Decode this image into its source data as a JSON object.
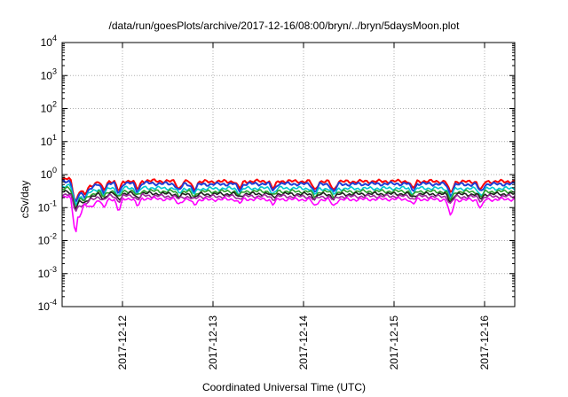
{
  "chart_data": {
    "type": "line",
    "title": "/data/run/goesPlots/archive/2017-12-16/08:00/bryn/../bryn/5daysMoon.plot",
    "xlabel": "Coordinated Universal Time (UTC)",
    "ylabel": "cSv/day",
    "y_scale": "log",
    "ylim": [
      0.0001,
      10000
    ],
    "y_ticks": [
      {
        "value": 0.0001,
        "exp": "-4"
      },
      {
        "value": 0.001,
        "exp": "-3"
      },
      {
        "value": 0.01,
        "exp": "-2"
      },
      {
        "value": 0.1,
        "exp": "-1"
      },
      {
        "value": 1,
        "exp": "0"
      },
      {
        "value": 10,
        "exp": "1"
      },
      {
        "value": 100,
        "exp": "2"
      },
      {
        "value": 1000,
        "exp": "3"
      },
      {
        "value": 10000,
        "exp": "4"
      }
    ],
    "y_tick_base": "10",
    "xlim": [
      "2017-12-11 08:00",
      "2017-12-16 08:00"
    ],
    "x_ticks": [
      "2017-12-12",
      "2017-12-13",
      "2017-12-14",
      "2017-12-15",
      "2017-12-16"
    ],
    "grid": true,
    "colors": {
      "red": "#ff0000",
      "blue": "#1f3fd6",
      "cyan": "#00c8d2",
      "green": "#2ca02c",
      "black": "#202020",
      "purple": "#9a2a9a",
      "magenta": "#ff00ff"
    },
    "series": [
      {
        "color": "red",
        "x": [
          "2017-12-11 08:00",
          "2017-12-11 10:00",
          "2017-12-11 12:00",
          "2017-12-11 18:00",
          "2017-12-12 06:00",
          "2017-12-12 18:00",
          "2017-12-13 06:00",
          "2017-12-13 18:00",
          "2017-12-14 06:00",
          "2017-12-14 18:00",
          "2017-12-15 06:00",
          "2017-12-15 18:00",
          "2017-12-16 08:00"
        ],
        "values": [
          0.7,
          0.75,
          0.3,
          0.62,
          0.65,
          0.6,
          0.62,
          0.63,
          0.6,
          0.62,
          0.63,
          0.6,
          0.62
        ]
      },
      {
        "color": "blue",
        "x": [
          "2017-12-11 08:00",
          "2017-12-11 10:00",
          "2017-12-11 12:00",
          "2017-12-11 18:00",
          "2017-12-12 06:00",
          "2017-12-12 18:00",
          "2017-12-13 06:00",
          "2017-12-13 18:00",
          "2017-12-14 06:00",
          "2017-12-14 18:00",
          "2017-12-15 06:00",
          "2017-12-15 18:00",
          "2017-12-16 08:00"
        ],
        "values": [
          0.6,
          0.65,
          0.25,
          0.52,
          0.55,
          0.5,
          0.52,
          0.53,
          0.5,
          0.52,
          0.53,
          0.5,
          0.52
        ]
      },
      {
        "color": "cyan",
        "x": [
          "2017-12-11 08:00",
          "2017-12-11 10:00",
          "2017-12-11 12:00",
          "2017-12-11 18:00",
          "2017-12-12 06:00",
          "2017-12-12 18:00",
          "2017-12-13 06:00",
          "2017-12-13 18:00",
          "2017-12-14 06:00",
          "2017-12-14 18:00",
          "2017-12-15 06:00",
          "2017-12-15 18:00",
          "2017-12-16 08:00"
        ],
        "values": [
          0.45,
          0.48,
          0.2,
          0.38,
          0.4,
          0.37,
          0.38,
          0.39,
          0.37,
          0.38,
          0.39,
          0.37,
          0.38
        ]
      },
      {
        "color": "green",
        "x": [
          "2017-12-11 08:00",
          "2017-12-11 10:00",
          "2017-12-11 12:00",
          "2017-12-11 18:00",
          "2017-12-12 06:00",
          "2017-12-12 18:00",
          "2017-12-13 06:00",
          "2017-12-13 18:00",
          "2017-12-14 06:00",
          "2017-12-14 18:00",
          "2017-12-15 06:00",
          "2017-12-15 18:00",
          "2017-12-16 08:00"
        ],
        "values": [
          0.36,
          0.38,
          0.17,
          0.31,
          0.32,
          0.3,
          0.31,
          0.31,
          0.3,
          0.31,
          0.31,
          0.3,
          0.31
        ]
      },
      {
        "color": "black",
        "x": [
          "2017-12-11 08:00",
          "2017-12-11 10:00",
          "2017-12-11 12:00",
          "2017-12-11 18:00",
          "2017-12-12 06:00",
          "2017-12-12 18:00",
          "2017-12-13 06:00",
          "2017-12-13 18:00",
          "2017-12-14 06:00",
          "2017-12-14 18:00",
          "2017-12-15 06:00",
          "2017-12-15 18:00",
          "2017-12-16 08:00"
        ],
        "values": [
          0.3,
          0.31,
          0.14,
          0.26,
          0.27,
          0.25,
          0.26,
          0.26,
          0.25,
          0.26,
          0.26,
          0.25,
          0.26
        ]
      },
      {
        "color": "purple",
        "x": [
          "2017-12-11 08:00",
          "2017-12-11 10:00",
          "2017-12-11 12:00",
          "2017-12-11 18:00",
          "2017-12-12 06:00",
          "2017-12-12 18:00",
          "2017-12-13 06:00",
          "2017-12-13 18:00",
          "2017-12-14 06:00",
          "2017-12-14 18:00",
          "2017-12-15 06:00",
          "2017-12-15 18:00",
          "2017-12-16 08:00"
        ],
        "values": [
          0.25,
          0.26,
          0.11,
          0.22,
          0.23,
          0.21,
          0.22,
          0.22,
          0.21,
          0.22,
          0.22,
          0.21,
          0.22
        ]
      },
      {
        "color": "magenta",
        "x": [
          "2017-12-11 08:00",
          "2017-12-11 10:00",
          "2017-12-11 12:00",
          "2017-12-11 18:00",
          "2017-12-12 06:00",
          "2017-12-12 18:00",
          "2017-12-13 06:00",
          "2017-12-13 18:00",
          "2017-12-14 06:00",
          "2017-12-14 18:00",
          "2017-12-15 06:00",
          "2017-12-15 18:00",
          "2017-12-16 08:00"
        ],
        "values": [
          0.2,
          0.21,
          0.05,
          0.18,
          0.19,
          0.17,
          0.18,
          0.18,
          0.17,
          0.18,
          0.18,
          0.17,
          0.18
        ]
      }
    ],
    "dips": [
      {
        "x": "2017-12-11 11:30",
        "magenta_value": 0.05
      },
      {
        "x": "2017-12-11 14:00",
        "magenta_value": 0.08
      },
      {
        "x": "2017-12-11 19:00",
        "magenta_value": 0.09
      },
      {
        "x": "2017-12-11 23:00",
        "magenta_value": 0.07
      },
      {
        "x": "2017-12-12 04:00",
        "magenta_value": 0.1
      },
      {
        "x": "2017-12-12 15:00",
        "magenta_value": 0.14
      },
      {
        "x": "2017-12-12 19:00",
        "magenta_value": 0.12
      },
      {
        "x": "2017-12-13 07:00",
        "magenta_value": 0.13
      },
      {
        "x": "2017-12-13 16:00",
        "magenta_value": 0.12
      },
      {
        "x": "2017-12-14 03:00",
        "magenta_value": 0.11
      },
      {
        "x": "2017-12-14 08:00",
        "magenta_value": 0.11
      },
      {
        "x": "2017-12-15 05:00",
        "magenta_value": 0.12
      },
      {
        "x": "2017-12-15 15:00",
        "magenta_value": 0.05
      },
      {
        "x": "2017-12-15 23:00",
        "magenta_value": 0.09
      }
    ]
  }
}
